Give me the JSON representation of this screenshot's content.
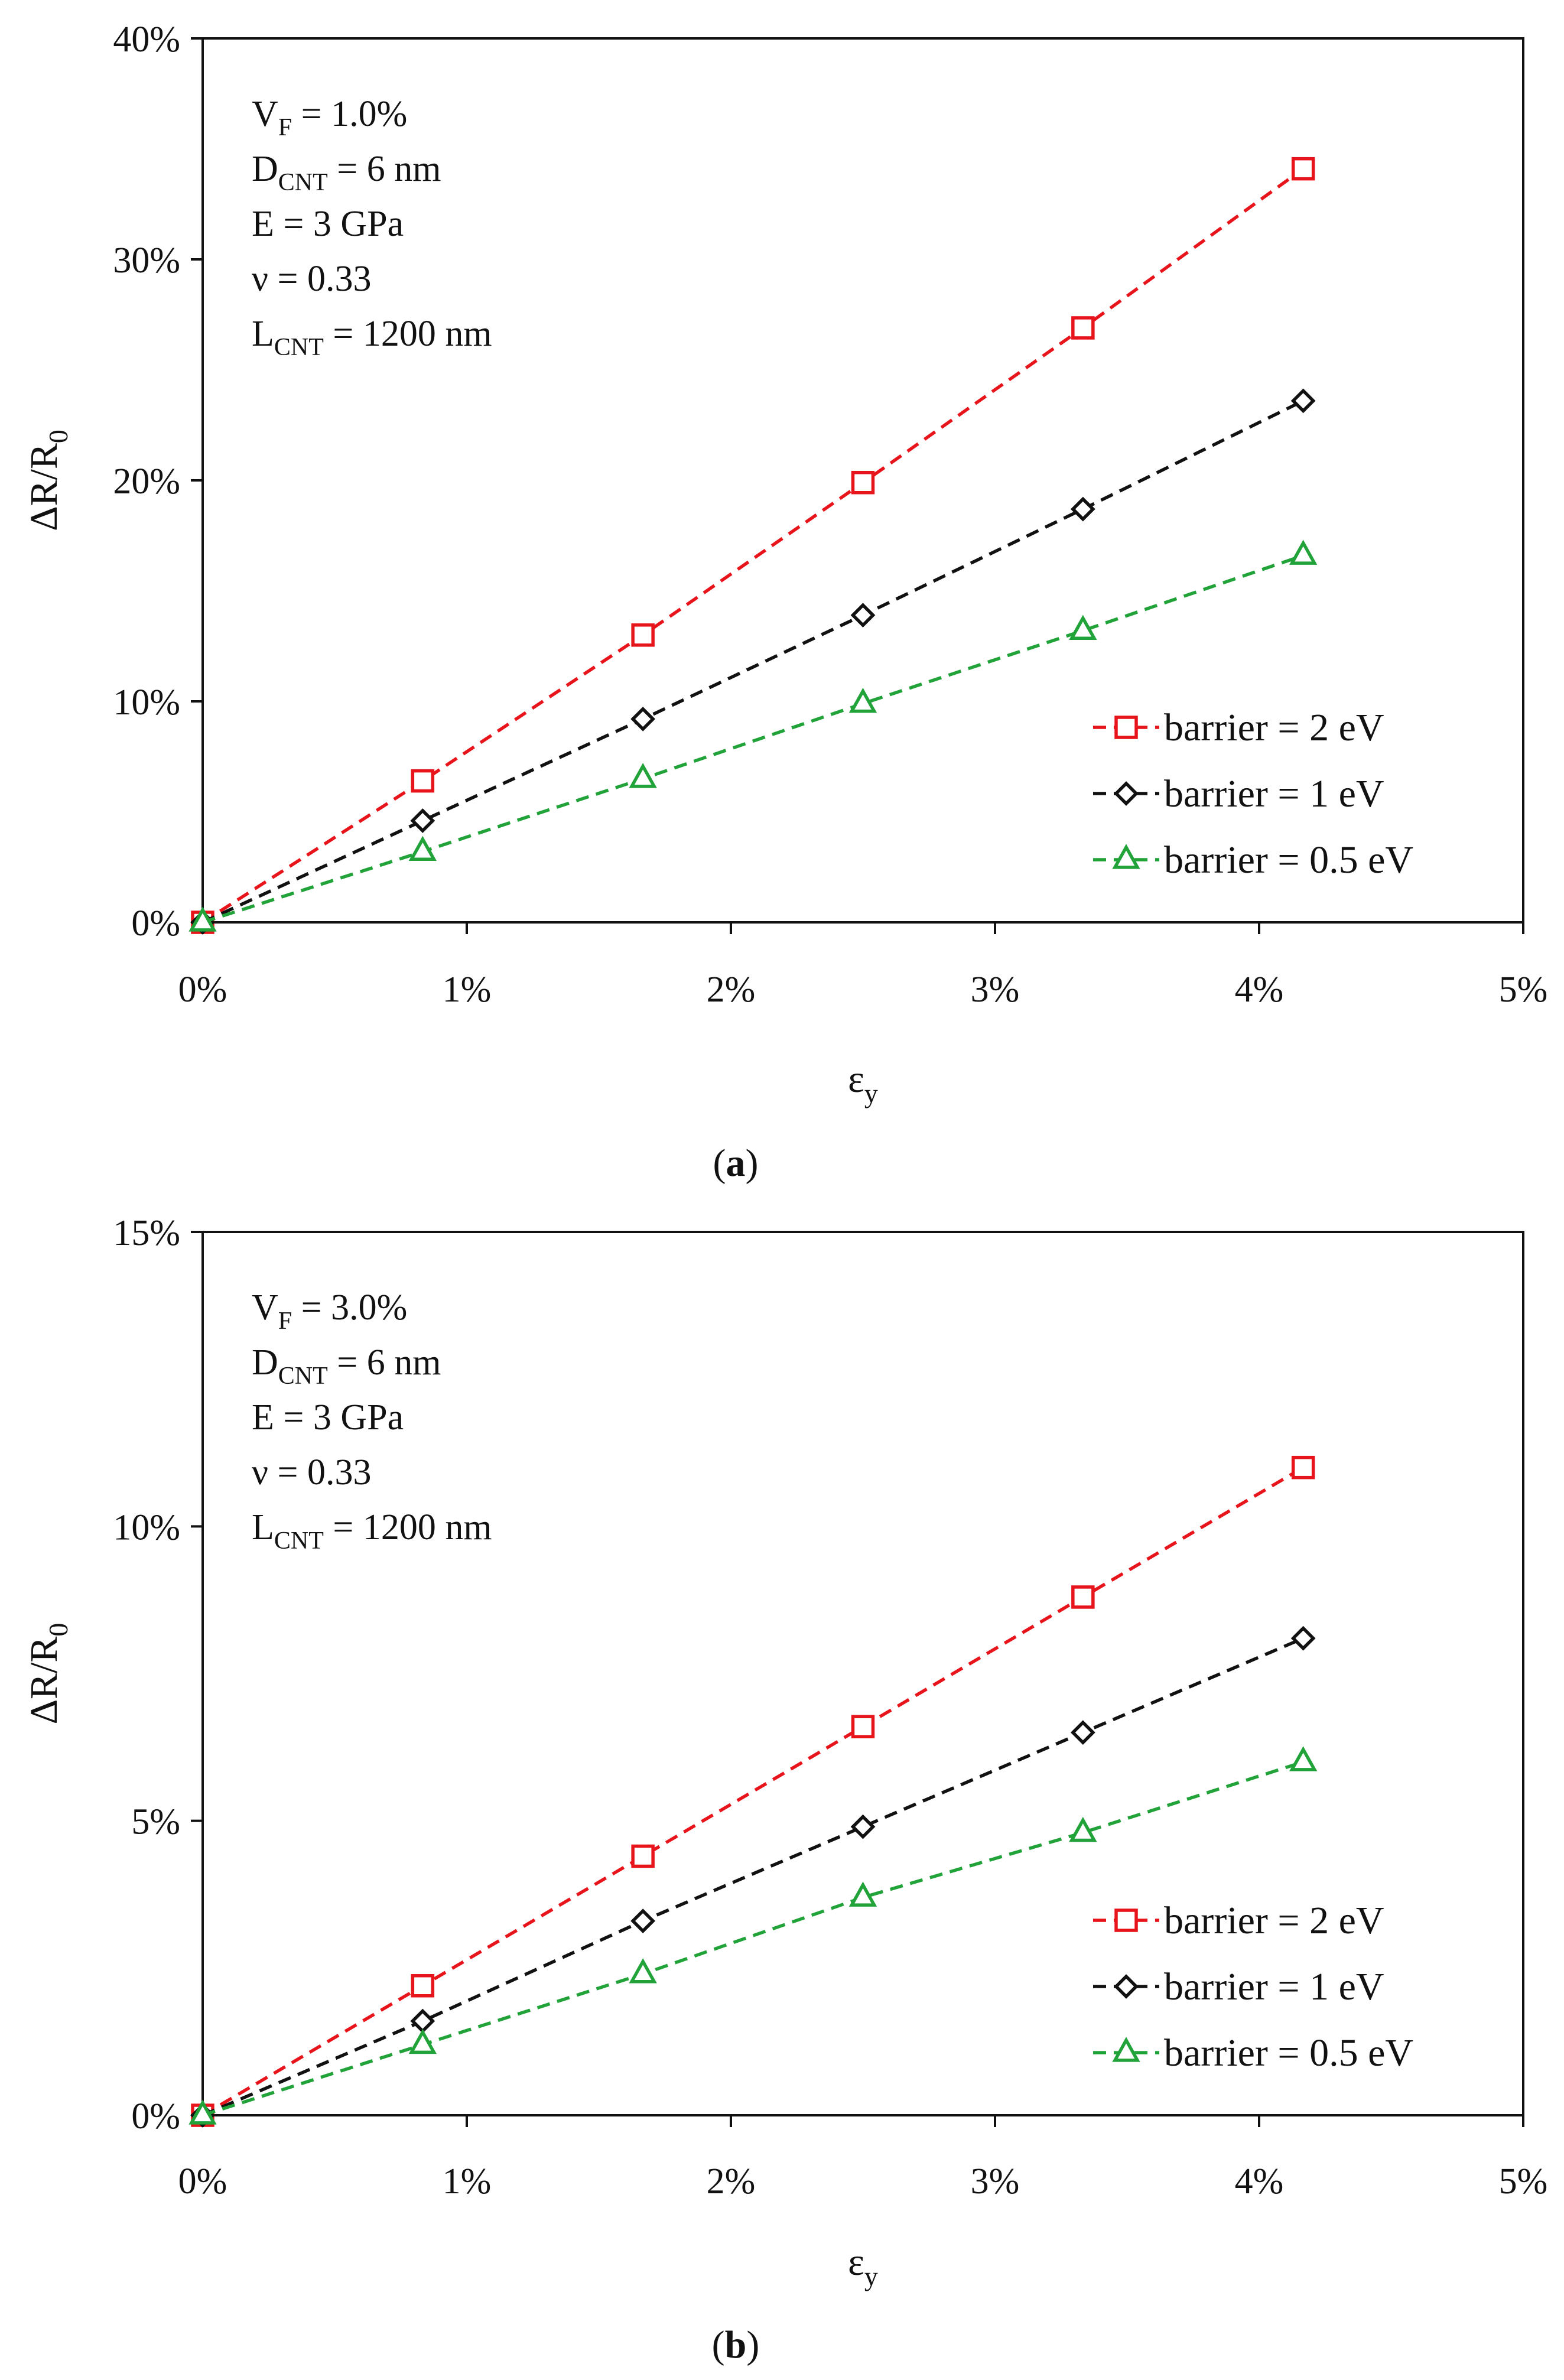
{
  "chart_data": [
    {
      "type": "line",
      "panel_label": "a",
      "xlabel": "ε",
      "xlabel_sub": "y",
      "ylabel": "ΔR/R",
      "ylabel_sub": "0",
      "xlim": [
        0,
        5
      ],
      "ylim": [
        0,
        40
      ],
      "x_ticks": [
        "0%",
        "1%",
        "2%",
        "3%",
        "4%",
        "5%"
      ],
      "y_ticks": [
        "0%",
        "10%",
        "20%",
        "30%",
        "40%"
      ],
      "x_tick_values": [
        0,
        1,
        2,
        3,
        4,
        5
      ],
      "y_tick_values": [
        0,
        10,
        20,
        30,
        40
      ],
      "grid": false,
      "legend_position": "bottom-right",
      "annotations": [
        {
          "main": "V",
          "sub": "F",
          "rest": " = 1.0%"
        },
        {
          "main": "D",
          "sub": "CNT",
          "rest": " = 6 nm"
        },
        {
          "main": "E = 3 GPa",
          "sub": "",
          "rest": ""
        },
        {
          "main": "ν = 0.33",
          "sub": "",
          "rest": ""
        },
        {
          "main": "L",
          "sub": "CNT",
          "rest": " = 1200 nm"
        }
      ],
      "x": [
        0,
        0.833,
        1.667,
        2.5,
        3.333,
        4.167
      ],
      "series": [
        {
          "name": "barrier = 2 eV",
          "color": "#e8141b",
          "marker": "square",
          "values": [
            0,
            6.4,
            13.0,
            19.9,
            26.9,
            34.1
          ]
        },
        {
          "name": "barrier = 1 eV",
          "color": "#111111",
          "marker": "diamond",
          "values": [
            0,
            4.6,
            9.2,
            13.9,
            18.7,
            23.6
          ]
        },
        {
          "name": "barrier = 0.5 eV",
          "color": "#22a33a",
          "marker": "triangle",
          "values": [
            0,
            3.2,
            6.5,
            9.9,
            13.2,
            16.6
          ]
        }
      ]
    },
    {
      "type": "line",
      "panel_label": "b",
      "xlabel": "ε",
      "xlabel_sub": "y",
      "ylabel": "ΔR/R",
      "ylabel_sub": "0",
      "xlim": [
        0,
        5
      ],
      "ylim": [
        0,
        15
      ],
      "x_ticks": [
        "0%",
        "1%",
        "2%",
        "3%",
        "4%",
        "5%"
      ],
      "y_ticks": [
        "0%",
        "5%",
        "10%",
        "15%"
      ],
      "x_tick_values": [
        0,
        1,
        2,
        3,
        4,
        5
      ],
      "y_tick_values": [
        0,
        5,
        10,
        15
      ],
      "grid": false,
      "legend_position": "bottom-right",
      "annotations": [
        {
          "main": "V",
          "sub": "F",
          "rest": " = 3.0%"
        },
        {
          "main": "D",
          "sub": "CNT",
          "rest": " = 6 nm"
        },
        {
          "main": "E = 3 GPa",
          "sub": "",
          "rest": ""
        },
        {
          "main": "ν = 0.33",
          "sub": "",
          "rest": ""
        },
        {
          "main": "L",
          "sub": "CNT",
          "rest": " = 1200 nm"
        }
      ],
      "x": [
        0,
        0.833,
        1.667,
        2.5,
        3.333,
        4.167
      ],
      "series": [
        {
          "name": "barrier = 2 eV",
          "color": "#e8141b",
          "marker": "square",
          "values": [
            0,
            2.2,
            4.4,
            6.6,
            8.8,
            11.0
          ]
        },
        {
          "name": "barrier = 1 eV",
          "color": "#111111",
          "marker": "diamond",
          "values": [
            0,
            1.6,
            3.3,
            4.9,
            6.5,
            8.1
          ]
        },
        {
          "name": "barrier = 0.5 eV",
          "color": "#22a33a",
          "marker": "triangle",
          "values": [
            0,
            1.2,
            2.4,
            3.7,
            4.8,
            6.0
          ]
        }
      ]
    }
  ]
}
